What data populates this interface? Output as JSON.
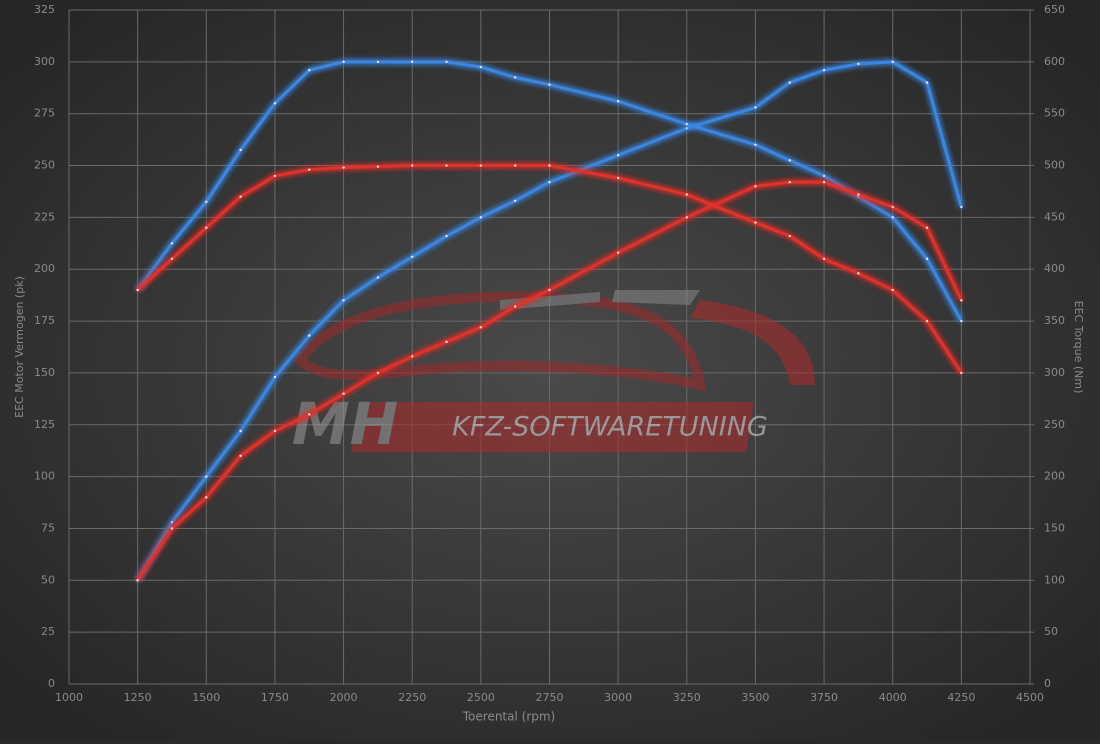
{
  "chart_data": {
    "type": "line",
    "xlabel": "Toerental (rpm)",
    "ylabel": "EEC Motor Vermogen (pk)",
    "y2label": "EEC Torque (Nm)",
    "x": [
      1250,
      1375,
      1500,
      1625,
      1750,
      1875,
      2000,
      2125,
      2250,
      2375,
      2500,
      2625,
      2750,
      3000,
      3250,
      3500,
      3625,
      3750,
      3875,
      4000,
      4125,
      4250
    ],
    "series": [
      {
        "color": "#3a86e0",
        "axis": "y",
        "values": [
          50,
          78,
          100,
          122,
          148,
          168,
          185,
          196,
          206,
          216,
          225,
          233,
          242,
          255,
          268,
          278,
          290,
          296,
          299,
          300,
          290,
          230
        ]
      },
      {
        "color": "#3a86e0",
        "axis": "y2",
        "values": [
          380,
          425,
          465,
          515,
          560,
          592,
          600,
          600,
          600,
          600,
          595,
          585,
          578,
          562,
          540,
          520,
          505,
          490,
          470,
          450,
          410,
          350
        ]
      },
      {
        "color": "#e0302a",
        "axis": "y",
        "values": [
          50,
          75,
          90,
          110,
          122,
          130,
          140,
          150,
          158,
          165,
          172,
          182,
          190,
          208,
          225,
          240,
          242,
          242,
          236,
          230,
          220,
          185
        ]
      },
      {
        "color": "#e0302a",
        "axis": "y2",
        "values": [
          380,
          410,
          440,
          470,
          490,
          496,
          498,
          499,
          500,
          500,
          500,
          500,
          500,
          488,
          472,
          445,
          432,
          410,
          396,
          380,
          350,
          300
        ]
      }
    ],
    "xlim": [
      1000,
      4500
    ],
    "xticks": [
      1000,
      1250,
      1500,
      1750,
      2000,
      2250,
      2500,
      2750,
      3000,
      3250,
      3500,
      3750,
      4000,
      4250,
      4500
    ],
    "ylim": [
      0,
      325
    ],
    "yticks": [
      0,
      25,
      50,
      75,
      100,
      125,
      150,
      175,
      200,
      225,
      250,
      275,
      300,
      325
    ],
    "y2lim": [
      0,
      650
    ],
    "y2ticks": [
      0,
      50,
      100,
      150,
      200,
      250,
      300,
      350,
      400,
      450,
      500,
      550,
      600,
      650
    ],
    "grid": true
  },
  "watermark": {
    "left": "MH",
    "right": "KFZ-SOFTWARETUNING"
  }
}
